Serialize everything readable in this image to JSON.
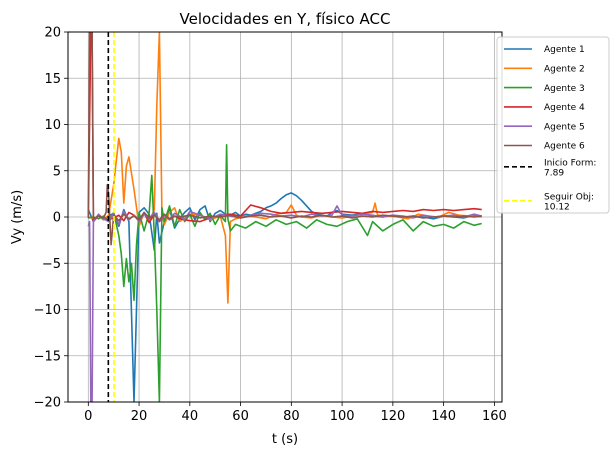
{
  "chart_data": {
    "type": "line",
    "title": "Velocidades en Y, físico ACC",
    "xlabel": "t (s)",
    "ylabel": "Vy (m/s)",
    "xlim": [
      -8,
      163
    ],
    "ylim": [
      -20,
      20
    ],
    "xticks": [
      0,
      20,
      40,
      60,
      80,
      100,
      120,
      140,
      160
    ],
    "yticks": [
      -20,
      -15,
      -10,
      -5,
      0,
      5,
      10,
      15,
      20
    ],
    "grid": true,
    "legend_position": "right, outside plot",
    "series": [
      {
        "name": "Agente 1",
        "color": "#1f77b4",
        "x": [
          0,
          2,
          4,
          6,
          8,
          10,
          12,
          14,
          16,
          18,
          20,
          22,
          24,
          26,
          27,
          28,
          30,
          32,
          34,
          36,
          38,
          40,
          42,
          44,
          46,
          48,
          50,
          52,
          54,
          56,
          58,
          60,
          62,
          64,
          66,
          68,
          70,
          72,
          74,
          76,
          78,
          80,
          82,
          84,
          86,
          88,
          90,
          92,
          94,
          96,
          98,
          100,
          104,
          108,
          112,
          116,
          120,
          124,
          128,
          132,
          136,
          140,
          144,
          148,
          152,
          155
        ],
        "y": [
          0.8,
          -0.5,
          0.2,
          -0.3,
          0.1,
          0.4,
          -1.0,
          0.8,
          -0.5,
          -20,
          0.5,
          1.0,
          0.3,
          -3.6,
          0.4,
          -2.8,
          -0.5,
          0.9,
          -1.2,
          -0.2,
          0.5,
          1.0,
          -0.3,
          0.8,
          1.2,
          -0.5,
          0.4,
          0.7,
          0.3,
          0.2,
          0.5,
          0.1,
          0.3,
          0.2,
          0.4,
          0.6,
          1.0,
          1.2,
          1.5,
          2.0,
          2.4,
          2.6,
          2.3,
          1.8,
          1.2,
          0.6,
          0.3,
          0.2,
          0.1,
          0.5,
          0.7,
          0.3,
          0.2,
          0.4,
          0.1,
          0.0,
          0.2,
          -0.1,
          0.1,
          0.0,
          -0.2,
          0.1,
          0.0,
          -0.1,
          0.2,
          0.1
        ]
      },
      {
        "name": "Agente 2",
        "color": "#ff7f0e",
        "x": [
          0,
          2,
          4,
          6,
          8,
          10,
          11,
          12,
          13,
          14,
          15,
          16,
          18,
          20,
          22,
          24,
          26,
          27,
          28,
          29,
          30,
          32,
          34,
          36,
          40,
          44,
          48,
          52,
          54,
          55,
          56,
          58,
          62,
          66,
          70,
          74,
          78,
          80,
          82,
          84,
          88,
          92,
          96,
          100,
          104,
          108,
          112,
          113,
          114,
          118,
          122,
          126,
          130,
          134,
          138,
          142,
          146,
          150,
          155
        ],
        "y": [
          0.0,
          -0.2,
          0.1,
          -0.3,
          0.2,
          3.5,
          6.0,
          8.5,
          7.0,
          1.5,
          5.5,
          6.5,
          3.0,
          -1.0,
          0.5,
          -0.5,
          0.8,
          12.0,
          20,
          0.5,
          -0.8,
          0.5,
          1.0,
          -0.5,
          0.3,
          0.2,
          -0.3,
          0.1,
          -2.0,
          -9.3,
          -0.5,
          -0.2,
          0.1,
          0.0,
          -0.2,
          0.3,
          0.5,
          1.3,
          0.2,
          0.0,
          -0.1,
          0.2,
          0.0,
          -0.1,
          0.1,
          0.3,
          0.5,
          1.5,
          0.2,
          0.1,
          0.0,
          -0.2,
          0.3,
          0.1,
          0.0,
          0.5,
          0.2,
          0.1,
          0.0
        ]
      },
      {
        "name": "Agente 3",
        "color": "#2ca02c",
        "x": [
          0,
          2,
          4,
          6,
          8,
          10,
          12,
          13,
          14,
          15,
          16,
          17,
          18,
          19,
          20,
          22,
          24,
          25,
          26,
          27,
          28,
          29,
          30,
          32,
          34,
          36,
          38,
          40,
          42,
          44,
          46,
          48,
          50,
          52,
          54,
          54.5,
          55,
          56,
          58,
          62,
          66,
          70,
          74,
          78,
          82,
          86,
          90,
          94,
          98,
          102,
          106,
          110,
          112,
          116,
          120,
          124,
          128,
          132,
          136,
          140,
          144,
          148,
          152,
          155
        ],
        "y": [
          -0.1,
          0.0,
          -0.2,
          0.1,
          -0.5,
          0.5,
          -2.0,
          -4.0,
          -7.5,
          -4.5,
          -7.0,
          -5.0,
          -9.0,
          -3.0,
          0.5,
          -1.5,
          0.5,
          4.5,
          -2.0,
          -10.0,
          -20,
          1.0,
          -0.5,
          1.2,
          -1.0,
          0.8,
          -0.5,
          0.3,
          -1.0,
          0.5,
          -0.3,
          0.4,
          -0.8,
          0.2,
          -0.5,
          7.8,
          -0.2,
          -1.5,
          -0.8,
          -1.2,
          -0.5,
          -1.0,
          -0.3,
          -0.8,
          -0.5,
          -1.2,
          -0.3,
          -0.8,
          -1.0,
          -0.5,
          -0.2,
          -2.0,
          -0.5,
          -1.5,
          -0.8,
          -0.3,
          -1.5,
          -0.5,
          -1.0,
          -0.8,
          -1.2,
          -0.5,
          -0.9,
          -0.7
        ]
      },
      {
        "name": "Agente 4",
        "color": "#d62728",
        "x": [
          0,
          1,
          1.5,
          2,
          4,
          6,
          8,
          10,
          12,
          14,
          16,
          18,
          20,
          22,
          24,
          26,
          28,
          30,
          32,
          34,
          36,
          40,
          44,
          48,
          52,
          56,
          60,
          64,
          68,
          72,
          76,
          80,
          84,
          88,
          92,
          96,
          100,
          104,
          108,
          112,
          116,
          120,
          124,
          128,
          132,
          136,
          140,
          144,
          148,
          152,
          155
        ],
        "y": [
          -0.1,
          20,
          20,
          -0.5,
          0.2,
          -0.2,
          -0.3,
          -0.1,
          0.2,
          -0.4,
          0.5,
          0.2,
          -0.3,
          0.4,
          -0.6,
          0.3,
          -0.5,
          0.2,
          -0.3,
          0.1,
          -0.2,
          -0.4,
          -0.5,
          -0.1,
          0.2,
          0.3,
          0.1,
          1.3,
          1.0,
          0.6,
          0.4,
          0.5,
          0.6,
          0.5,
          0.4,
          0.5,
          0.6,
          0.5,
          0.4,
          0.6,
          0.5,
          0.6,
          0.7,
          0.6,
          0.8,
          0.7,
          0.8,
          0.7,
          0.8,
          0.9,
          0.8
        ]
      },
      {
        "name": "Agente 5",
        "color": "#9467bd",
        "x": [
          0,
          0.5,
          1,
          1.5,
          2,
          4,
          6,
          8,
          10,
          12,
          14,
          16,
          18,
          20,
          22,
          24,
          26,
          28,
          30,
          32,
          34,
          36,
          38,
          40,
          44,
          48,
          52,
          56,
          60,
          64,
          68,
          72,
          76,
          80,
          84,
          88,
          92,
          96,
          98,
          100,
          104,
          108,
          112,
          116,
          120,
          124,
          128,
          132,
          136,
          140,
          144,
          148,
          152,
          155
        ],
        "y": [
          -1.0,
          -0.5,
          -20,
          -20,
          -0.5,
          0.3,
          -0.2,
          -0.5,
          0.4,
          -0.8,
          0.6,
          -0.3,
          0.2,
          -0.5,
          0.3,
          -0.2,
          0.5,
          -0.4,
          0.2,
          -0.3,
          0.4,
          0.1,
          -0.3,
          0.6,
          0.2,
          -0.2,
          0.3,
          0.1,
          -0.1,
          0.2,
          0.4,
          0.3,
          0.1,
          0.2,
          0.0,
          0.3,
          0.1,
          0.2,
          1.2,
          0.2,
          0.1,
          0.3,
          0.2,
          0.0,
          0.2,
          0.1,
          -0.1,
          0.2,
          0.0,
          0.1,
          0.2,
          0.0,
          0.3,
          0.1
        ]
      },
      {
        "name": "Agente 6",
        "color": "#8c564b",
        "x": [
          0,
          0.5,
          1,
          1.5,
          2,
          4,
          6,
          7,
          7.5,
          8,
          9,
          10,
          12,
          14,
          16,
          18,
          20,
          22,
          24,
          26,
          28,
          30,
          32,
          34,
          36,
          40,
          44,
          48,
          52,
          56,
          60,
          64,
          68,
          72,
          76,
          80,
          84,
          88,
          92,
          96,
          100,
          104,
          108,
          112,
          116,
          120,
          124,
          128,
          132,
          136,
          140,
          144,
          148,
          152,
          155
        ],
        "y": [
          0.0,
          20,
          20,
          20,
          -0.2,
          0.1,
          -0.1,
          0.5,
          3.5,
          2.5,
          -3.0,
          0.2,
          -0.4,
          0.3,
          -0.2,
          0.1,
          -0.3,
          0.5,
          -0.1,
          0.2,
          -0.3,
          0.3,
          -0.2,
          0.1,
          0.0,
          0.2,
          -0.1,
          0.1,
          0.0,
          0.2,
          -0.1,
          0.1,
          0.2,
          0.0,
          0.1,
          -0.1,
          0.1,
          0.0,
          0.2,
          0.0,
          0.1,
          -0.1,
          0.1,
          0.0,
          0.2,
          0.1,
          0.0,
          0.1,
          -0.1,
          0.0,
          0.1,
          0.0,
          0.1,
          0.0,
          0.1
        ]
      }
    ],
    "vlines": [
      {
        "label": "Inicio Form: 7.89",
        "label_lines": [
          "Inicio Form:",
          "7.89"
        ],
        "x": 7.89,
        "color": "#000000",
        "style": "dashed"
      },
      {
        "label": "Seguir Obj: 10.12",
        "label_lines": [
          "Seguir Obj:",
          "10.12"
        ],
        "x": 10.12,
        "color": "#ffff00",
        "style": "dashed"
      }
    ]
  }
}
